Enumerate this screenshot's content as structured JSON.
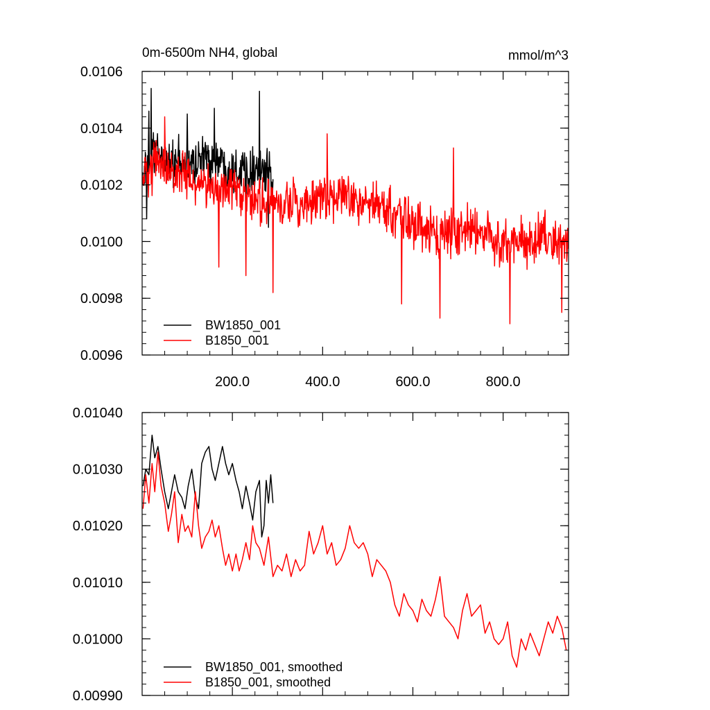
{
  "figure": {
    "title_left": "0m-6500m NH4, global",
    "units": "mmol/m^3"
  },
  "chart_data": [
    {
      "type": "line",
      "title": "0m-6500m NH4, global",
      "units": "mmol/m^3",
      "xlim": [
        0,
        945
      ],
      "ylim": [
        0.0096,
        0.0106
      ],
      "x_tick_values": [
        200,
        400,
        600,
        800
      ],
      "x_tick_labels": [
        "200.0",
        "400.0",
        "600.0",
        "800.0"
      ],
      "x_minor_step": 50,
      "y_tick_values": [
        0.0096,
        0.0098,
        0.01,
        0.0102,
        0.0104,
        0.0106
      ],
      "y_tick_labels": [
        "0.0096",
        "0.0098",
        "0.0100",
        "0.0102",
        "0.0104",
        "0.0106"
      ],
      "y_minor_step": 4e-05,
      "legend_position": "bottom-left",
      "series": [
        {
          "name": "BW1850_001",
          "color": "#000000",
          "x_start": 1,
          "x_step": 1,
          "anchors_x": [
            1,
            30,
            60,
            100,
            150,
            200,
            250,
            290
          ],
          "anchors_y": [
            0.01023,
            0.01032,
            0.01028,
            0.01027,
            0.0103,
            0.01026,
            0.01026,
            0.01022
          ],
          "noise": 8e-05,
          "spikes": [
            [
              20,
              0.01054
            ],
            [
              15,
              0.01046
            ],
            [
              100,
              0.01045
            ],
            [
              160,
              0.01047
            ],
            [
              260,
              0.01053
            ],
            [
              10,
              0.01008
            ],
            [
              230,
              0.01003
            ],
            [
              280,
              0.01005
            ]
          ]
        },
        {
          "name": "B1850_001",
          "color": "#ff0000",
          "x_start": 1,
          "x_step": 1,
          "anchors_x": [
            1,
            30,
            60,
            100,
            150,
            200,
            250,
            300,
            350,
            400,
            450,
            500,
            550,
            600,
            650,
            700,
            750,
            800,
            850,
            900,
            944
          ],
          "anchors_y": [
            0.01022,
            0.01029,
            0.01025,
            0.01022,
            0.0102,
            0.01017,
            0.01015,
            0.01013,
            0.01013,
            0.01015,
            0.01017,
            0.01014,
            0.01011,
            0.01006,
            0.01003,
            0.01005,
            0.01004,
            0.00999,
            0.01001,
            0.01001,
            0.00998
          ],
          "noise": 8e-05,
          "spikes": [
            [
              50,
              0.01044
            ],
            [
              410,
              0.01038
            ],
            [
              690,
              0.01033
            ],
            [
              170,
              0.00991
            ],
            [
              230,
              0.00988
            ],
            [
              290,
              0.00982
            ],
            [
              575,
              0.00978
            ],
            [
              660,
              0.00973
            ],
            [
              815,
              0.00971
            ],
            [
              930,
              0.00975
            ]
          ]
        }
      ]
    },
    {
      "type": "line",
      "xlim": [
        0,
        945
      ],
      "ylim": [
        0.0099,
        0.0104
      ],
      "x_minor_step": 50,
      "x_major_step": 200,
      "y_tick_values": [
        0.0099,
        0.01,
        0.0101,
        0.0102,
        0.0103,
        0.0104
      ],
      "y_tick_labels": [
        "0.00990",
        "0.01000",
        "0.01010",
        "0.01020",
        "0.01030",
        "0.01040"
      ],
      "y_minor_step": 2e-05,
      "legend_position": "bottom-left",
      "series": [
        {
          "name": "BW1850_001, smoothed",
          "color": "#000000",
          "x": [
            2,
            8,
            15,
            22,
            28,
            35,
            42,
            50,
            58,
            65,
            72,
            80,
            88,
            95,
            102,
            110,
            118,
            125,
            132,
            140,
            148,
            155,
            162,
            170,
            178,
            185,
            192,
            200,
            208,
            215,
            222,
            230,
            238,
            245,
            252,
            260,
            265,
            270,
            275,
            280,
            285,
            290
          ],
          "y": [
            0.01027,
            0.0103,
            0.01029,
            0.01036,
            0.01032,
            0.01034,
            0.0103,
            0.01026,
            0.01023,
            0.01026,
            0.01029,
            0.01026,
            0.01025,
            0.01023,
            0.01027,
            0.0103,
            0.01025,
            0.01023,
            0.01031,
            0.01033,
            0.01034,
            0.0103,
            0.01028,
            0.01031,
            0.01034,
            0.01031,
            0.01029,
            0.01031,
            0.01028,
            0.01026,
            0.01023,
            0.01027,
            0.01024,
            0.01021,
            0.01026,
            0.01028,
            0.01018,
            0.0102,
            0.01028,
            0.01024,
            0.01029,
            0.01024
          ]
        },
        {
          "name": "B1850_001, smoothed",
          "color": "#ff0000",
          "x": [
            2,
            8,
            15,
            22,
            28,
            35,
            42,
            50,
            58,
            65,
            72,
            80,
            88,
            95,
            102,
            110,
            118,
            125,
            132,
            140,
            148,
            155,
            162,
            170,
            178,
            185,
            192,
            200,
            208,
            215,
            222,
            230,
            238,
            245,
            252,
            260,
            270,
            280,
            290,
            300,
            310,
            320,
            330,
            340,
            350,
            360,
            370,
            380,
            390,
            400,
            410,
            420,
            430,
            440,
            450,
            460,
            470,
            480,
            490,
            500,
            510,
            520,
            530,
            540,
            550,
            560,
            570,
            580,
            590,
            600,
            610,
            620,
            630,
            640,
            650,
            660,
            670,
            680,
            690,
            700,
            710,
            720,
            730,
            740,
            750,
            760,
            770,
            780,
            790,
            800,
            810,
            820,
            830,
            840,
            850,
            860,
            870,
            880,
            890,
            900,
            910,
            920,
            930,
            940
          ],
          "y": [
            0.01023,
            0.01029,
            0.01024,
            0.01031,
            0.01026,
            0.01033,
            0.01027,
            0.01024,
            0.01019,
            0.01022,
            0.01026,
            0.01017,
            0.01022,
            0.01019,
            0.0102,
            0.01018,
            0.01026,
            0.0102,
            0.01016,
            0.01018,
            0.01019,
            0.01021,
            0.01018,
            0.0102,
            0.01016,
            0.01013,
            0.01015,
            0.01012,
            0.01015,
            0.01012,
            0.01014,
            0.01017,
            0.01014,
            0.0102,
            0.01017,
            0.01016,
            0.01013,
            0.01018,
            0.01011,
            0.01013,
            0.01012,
            0.01015,
            0.01011,
            0.01014,
            0.01012,
            0.01013,
            0.01019,
            0.01015,
            0.01017,
            0.0102,
            0.01015,
            0.01017,
            0.01013,
            0.01014,
            0.01016,
            0.0102,
            0.01017,
            0.01016,
            0.01017,
            0.01015,
            0.01011,
            0.01014,
            0.01013,
            0.01012,
            0.0101,
            0.01006,
            0.01004,
            0.01008,
            0.01006,
            0.01005,
            0.01003,
            0.01007,
            0.01005,
            0.01004,
            0.01007,
            0.01011,
            0.01004,
            0.01003,
            0.01002,
            0.01,
            0.01005,
            0.01008,
            0.01004,
            0.01005,
            0.01006,
            0.01001,
            0.01003,
            0.01,
            0.00999,
            0.01,
            0.01003,
            0.00997,
            0.00995,
            0.01,
            0.00998,
            0.01001,
            0.00999,
            0.00997,
            0.01,
            0.01003,
            0.01001,
            0.01004,
            0.01002,
            0.00998
          ]
        }
      ]
    }
  ]
}
